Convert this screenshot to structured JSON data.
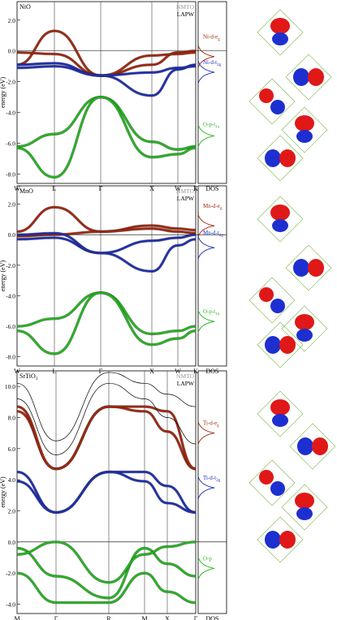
{
  "figure": {
    "ylabel": "energy (eV)",
    "dos_label": "DOS",
    "legend_nmto": "NMTO",
    "legend_lapw": "LAPW",
    "colors": {
      "eg": "#a0280f",
      "t2g": "#1f2fb0",
      "p": "#22b51e",
      "lapw": "#000000",
      "nmto_gray": "#9a9a9a",
      "orbital_pos": "#e01818",
      "orbital_neg": "#1e2fd0",
      "cage": "#7ab648"
    }
  },
  "chart_data": [
    {
      "type": "line",
      "title": "NiO",
      "kpoints": [
        "W",
        "L",
        "Γ",
        "X",
        "W",
        "K"
      ],
      "ylim": [
        -8.6,
        3.2
      ],
      "yticks": [
        "2.0",
        "0.0",
        "-2.0",
        "-4.0",
        "-6.0",
        "-8.0"
      ],
      "ytick_values": [
        2,
        0,
        -2,
        -4,
        -6,
        -8
      ],
      "series": [
        {
          "name": "Ni-d-eg",
          "label_main": "Ni-d-e",
          "label_sub": "g",
          "color_key": "eg",
          "values": [
            -0.9,
            1.3,
            -1.6,
            -0.9,
            -0.1,
            0.0
          ]
        },
        {
          "name": "Ni-d-eg (2)",
          "color_key": "eg",
          "values": [
            -0.1,
            -0.2,
            -1.6,
            -0.3,
            -0.2,
            -0.1
          ]
        },
        {
          "name": "Ni-d-t2g",
          "label_main": "Ni-d-t",
          "label_sub": "2g",
          "color_key": "t2g",
          "values": [
            -0.9,
            -0.8,
            -1.6,
            -2.9,
            -1.2,
            -0.9
          ]
        },
        {
          "name": "Ni-d-t2g (2)",
          "color_key": "t2g",
          "values": [
            -1.1,
            -1.0,
            -1.6,
            -1.4,
            -1.1,
            -1.0
          ]
        },
        {
          "name": "O-p-t1u",
          "label_main": "O-p-t",
          "label_sub": "1u",
          "color_key": "p",
          "values": [
            -6.2,
            -5.4,
            -3.0,
            -5.9,
            -6.4,
            -6.2
          ]
        },
        {
          "name": "O-p-t1u (2)",
          "color_key": "p",
          "values": [
            -6.3,
            -8.2,
            -3.0,
            -6.9,
            -6.7,
            -6.3
          ]
        }
      ]
    },
    {
      "type": "line",
      "title": "MnO",
      "kpoints": [
        "W",
        "L",
        "Γ",
        "X",
        "W",
        "K"
      ],
      "ylim": [
        -8.6,
        3.2
      ],
      "yticks": [
        "2.0",
        "0.0",
        "-2.0",
        "-4.0",
        "-6.0",
        "-8.0"
      ],
      "ytick_values": [
        2,
        0,
        -2,
        -4,
        -6,
        -8
      ],
      "series": [
        {
          "name": "Mn-d-eg",
          "label_main": "Mn-d-e",
          "label_sub": "g",
          "color_key": "eg",
          "values": [
            0.2,
            1.8,
            0.2,
            0.6,
            0.4,
            0.3
          ]
        },
        {
          "name": "Mn-d-eg (2)",
          "color_key": "eg",
          "values": [
            -0.1,
            0.0,
            0.2,
            0.4,
            0.2,
            0.1
          ]
        },
        {
          "name": "Mn-d-t2g",
          "label_main": "Mn-d-t",
          "label_sub": "2g",
          "color_key": "t2g",
          "values": [
            -0.3,
            -0.2,
            -1.2,
            -2.4,
            -0.7,
            -0.3
          ]
        },
        {
          "name": "Mn-d-t2g (2)",
          "color_key": "t2g",
          "values": [
            0.0,
            0.1,
            -1.2,
            -0.4,
            -0.2,
            0.0
          ]
        },
        {
          "name": "O-p-t1u",
          "label_main": "O-p-t",
          "label_sub": "1u",
          "color_key": "p",
          "values": [
            -6.0,
            -5.5,
            -3.8,
            -6.5,
            -6.3,
            -6.0
          ]
        },
        {
          "name": "O-p-t1u (2)",
          "color_key": "p",
          "values": [
            -6.3,
            -7.8,
            -3.8,
            -7.2,
            -6.8,
            -6.3
          ]
        }
      ]
    },
    {
      "type": "line",
      "title": "SrTiO3",
      "title_main": "SrTiO",
      "title_sub": "3",
      "kpoints": [
        "M",
        "Γ",
        "R",
        "M",
        "X",
        "Γ"
      ],
      "ylim": [
        -4.6,
        11.0
      ],
      "yticks": [
        "10.0",
        "8.0",
        "6.0",
        "4.0",
        "2.0",
        "0.0",
        "-2.0",
        "-4.0"
      ],
      "ytick_values": [
        10,
        8,
        6,
        4,
        2,
        0,
        -2,
        -4
      ],
      "series": [
        {
          "name": "Ti-d-eg",
          "label_main": "Ti-d-e",
          "label_sub": "g",
          "color_key": "eg",
          "values": [
            8.4,
            4.7,
            8.7,
            8.4,
            7.1,
            4.7
          ]
        },
        {
          "name": "Ti-d-eg (2)",
          "color_key": "eg",
          "values": [
            8.7,
            4.7,
            8.7,
            8.7,
            8.4,
            4.7
          ]
        },
        {
          "name": "Ti-d-t2g",
          "label_main": "Ti-d-t",
          "label_sub": "2g",
          "color_key": "t2g",
          "values": [
            4.5,
            1.9,
            4.5,
            4.5,
            3.6,
            1.9
          ]
        },
        {
          "name": "Ti-d-t2g (2)",
          "color_key": "t2g",
          "values": [
            3.9,
            1.9,
            4.5,
            3.9,
            2.5,
            1.9
          ]
        },
        {
          "name": "O-p",
          "label_main": "O-p",
          "label_sub": "",
          "color_key": "p",
          "values": [
            -0.4,
            -2.2,
            -3.6,
            -0.4,
            -1.4,
            -2.2
          ]
        },
        {
          "name": "O-p (2)",
          "color_key": "p",
          "values": [
            -2.0,
            -3.9,
            -3.9,
            -2.0,
            -3.2,
            -3.9
          ]
        },
        {
          "name": "O-p (3)",
          "color_key": "p",
          "values": [
            -0.8,
            0.0,
            -2.6,
            -0.8,
            -0.3,
            0.0
          ]
        },
        {
          "name": "LAPW upper",
          "color_key": "lapw",
          "values": [
            9.2,
            5.6,
            10.2,
            9.2,
            8.0,
            6.3
          ]
        },
        {
          "name": "LAPW upper (2)",
          "color_key": "lapw",
          "values": [
            10.2,
            6.5,
            10.9,
            10.2,
            9.5,
            8.7
          ]
        }
      ]
    }
  ]
}
